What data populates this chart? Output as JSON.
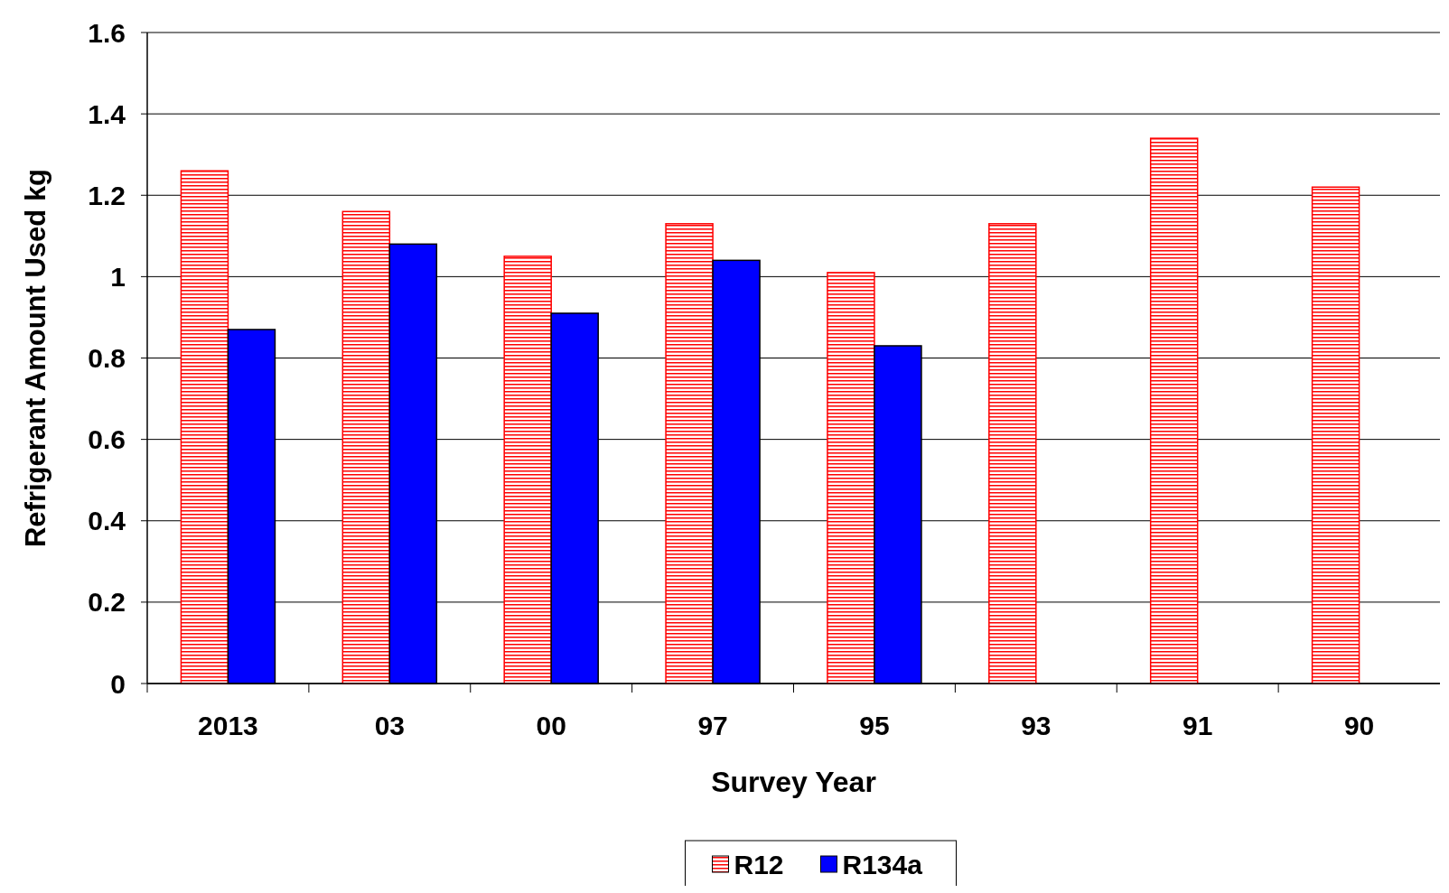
{
  "chart_data": {
    "type": "bar",
    "xlabel": "Survey Year",
    "ylabel": "Refrigerant Amount Used kg",
    "categories": [
      "2013",
      "03",
      "00",
      "97",
      "95",
      "93",
      "91",
      "90"
    ],
    "series": [
      {
        "name": "R12",
        "color": "#ff0000",
        "values": [
          1.26,
          1.16,
          1.05,
          1.13,
          1.01,
          1.13,
          1.34,
          1.22
        ]
      },
      {
        "name": "R134a",
        "color": "#0000ff",
        "values": [
          0.87,
          1.08,
          0.91,
          1.04,
          0.83,
          null,
          null,
          null
        ]
      }
    ],
    "ylim": [
      0,
      1.6
    ],
    "yticks": [
      0,
      0.2,
      0.4,
      0.6,
      0.8,
      1,
      1.2,
      1.4,
      1.6
    ],
    "grid": "y",
    "legend": "bottom"
  }
}
